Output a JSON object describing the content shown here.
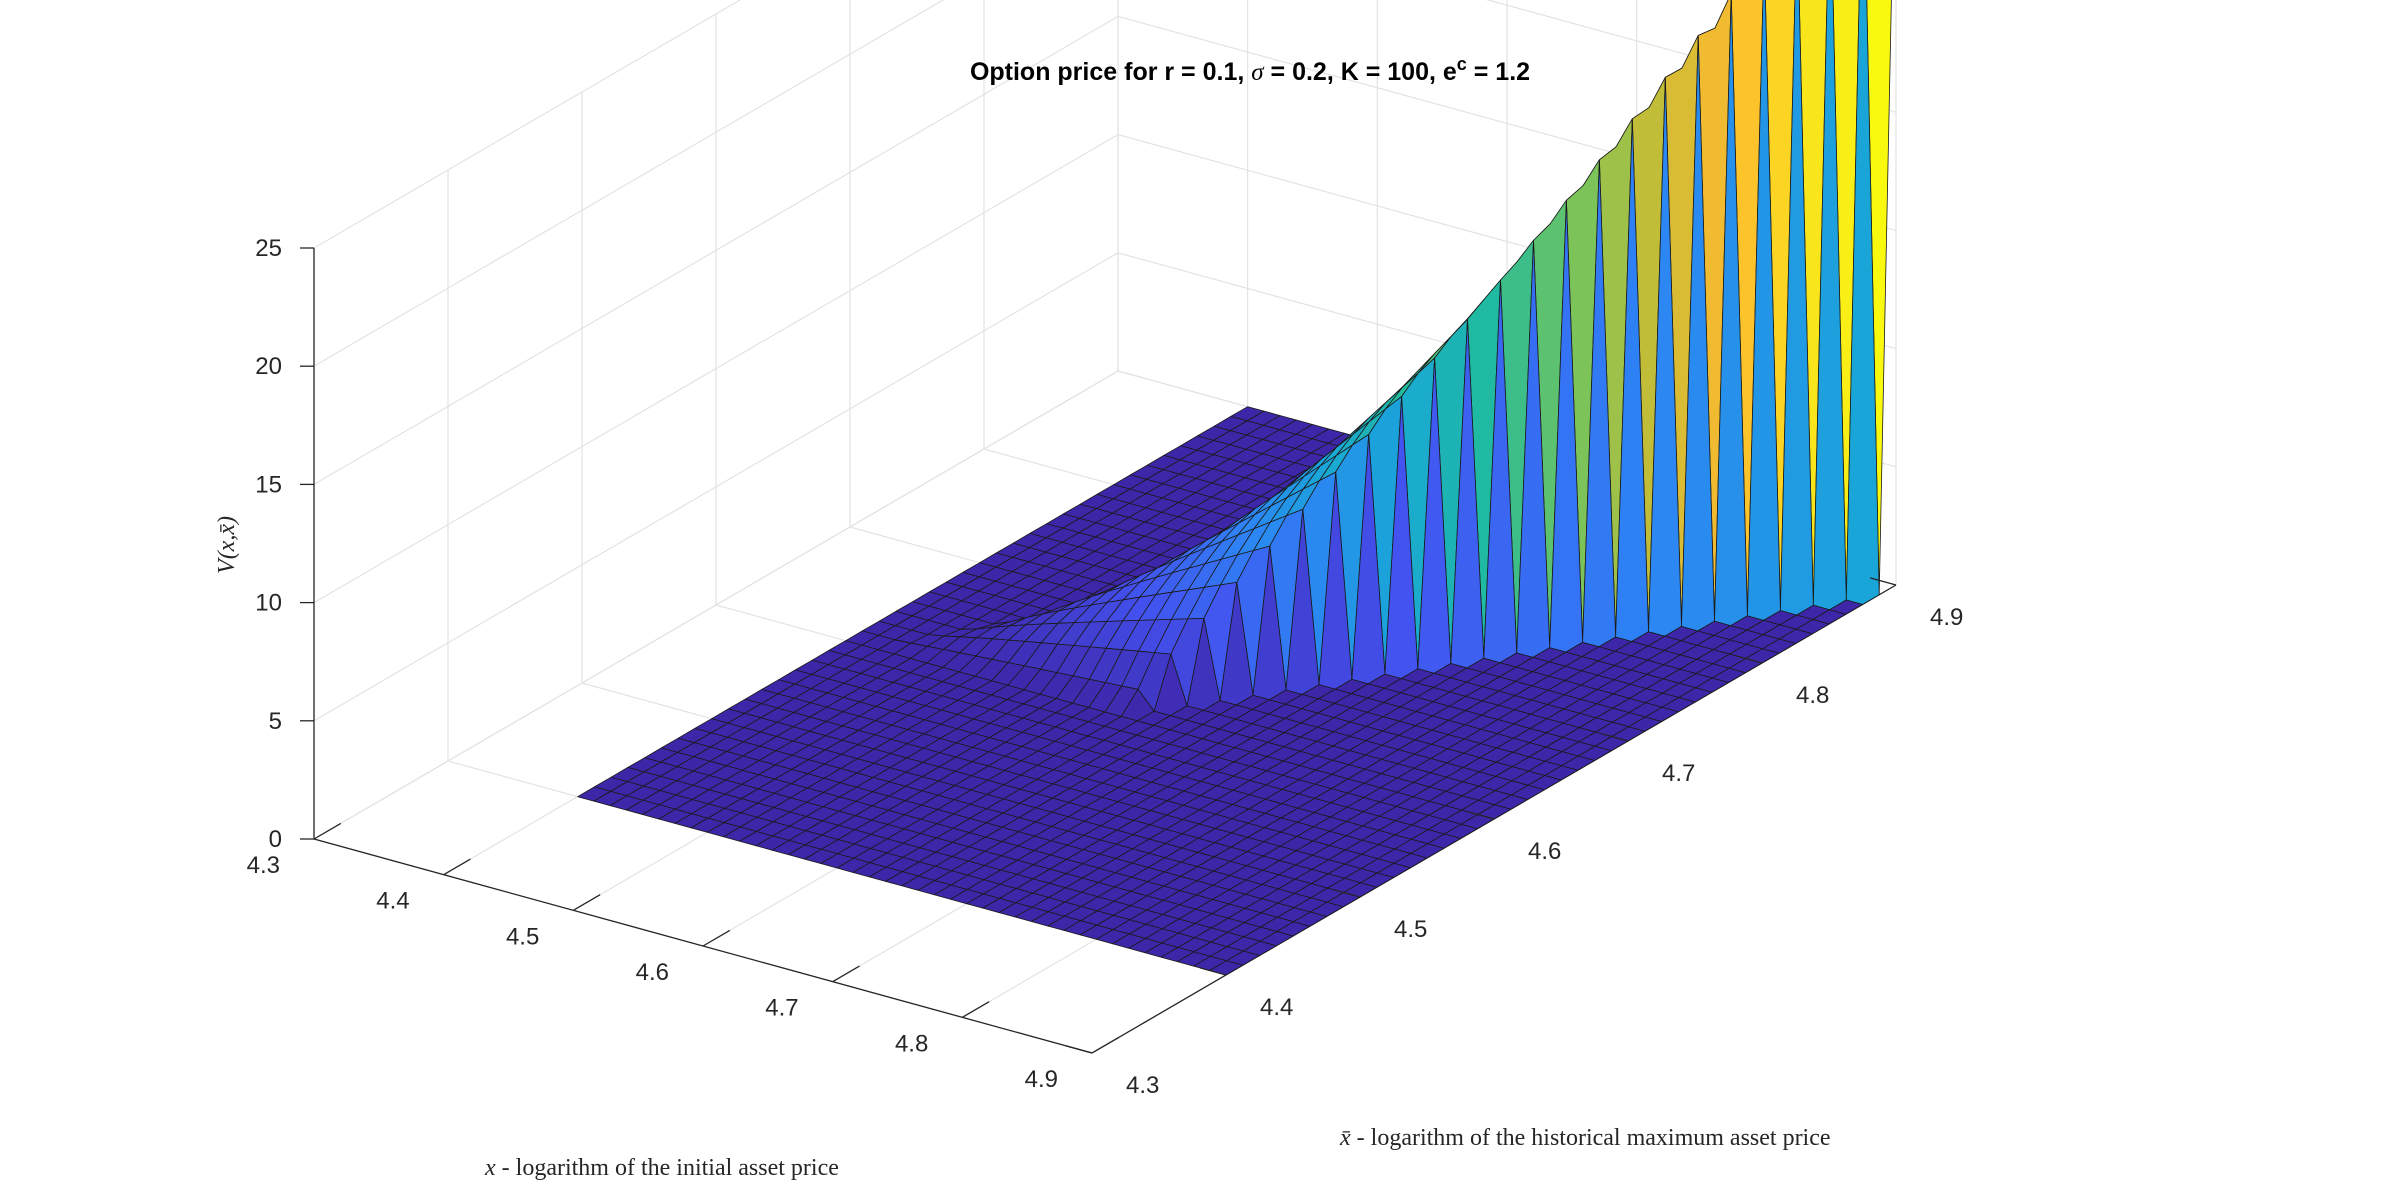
{
  "chart_data": {
    "type": "surface",
    "title": {
      "prefix": "Option price for r = 0.1, ",
      "sigma_symbol": "σ",
      "mid": " = 0.2, K = 100, e",
      "sup": "c",
      "suffix": " = 1.2"
    },
    "xlabel": {
      "var": "x",
      "rest": " - logarithm of the initial asset price"
    },
    "ylabel": {
      "var": "x̄",
      "rest": " - logarithm of the historical maximum asset price"
    },
    "zlabel": "V(x,x̄)",
    "x_ticks": [
      "4.3",
      "4.4",
      "4.5",
      "4.6",
      "4.7",
      "4.8",
      "4.9"
    ],
    "y_ticks": [
      "4.3",
      "4.4",
      "4.5",
      "4.6",
      "4.7",
      "4.8",
      "4.9"
    ],
    "z_ticks": [
      "0",
      "5",
      "10",
      "15",
      "20",
      "25"
    ],
    "xlim": [
      4.3,
      4.9
    ],
    "ylim": [
      4.3,
      4.9
    ],
    "zlim": [
      0,
      25
    ],
    "x_range": [
      4.4,
      4.9
    ],
    "y_range": [
      4.4,
      4.9
    ],
    "grid": true,
    "colormap": "parula",
    "colormap_stops": [
      "#3e26a8",
      "#4352f0",
      "#2d84f5",
      "#19a7d7",
      "#1fbaa0",
      "#6fc55f",
      "#c5bd37",
      "#fdbb2e",
      "#f9e41d",
      "#f9fb0e"
    ],
    "grid_points": 41,
    "strike_K": 100,
    "barrier_factor": 1.2,
    "mesh_color": "#1a1a1a",
    "grid_color": "#e3e3e3",
    "axis_color": "#262626"
  }
}
